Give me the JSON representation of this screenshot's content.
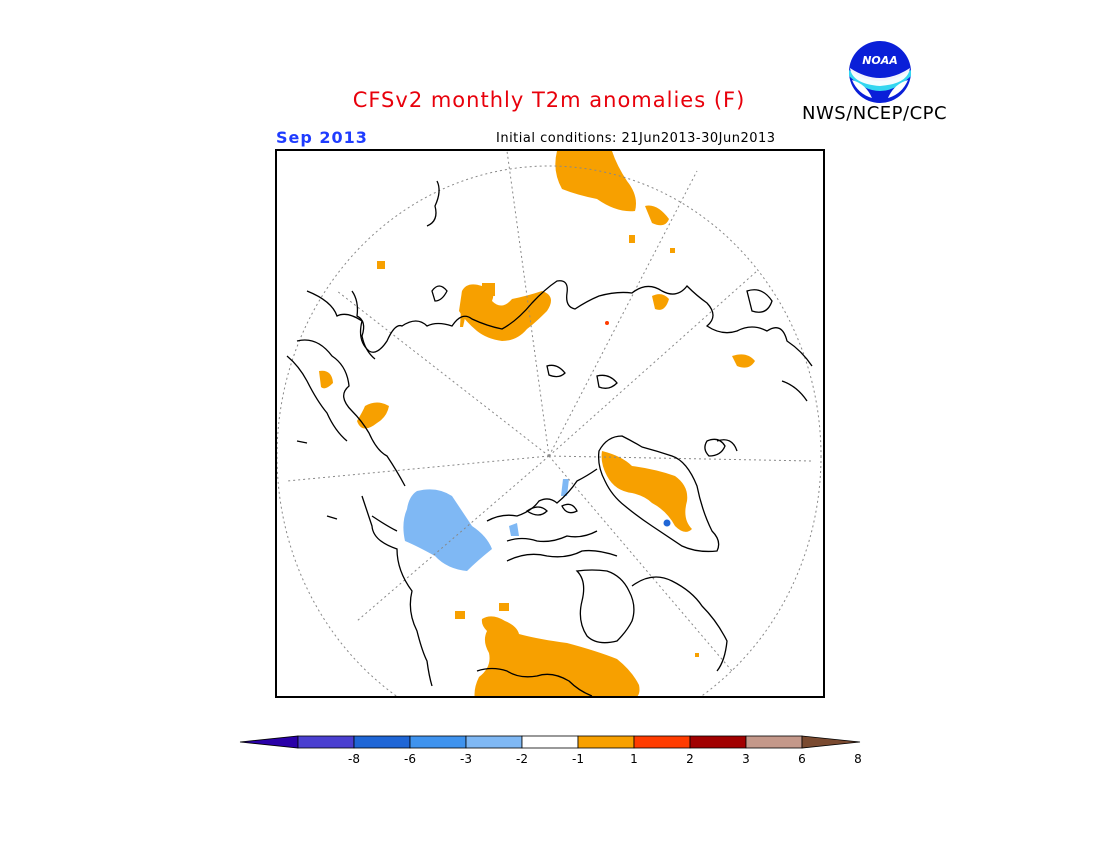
{
  "header": {
    "title": "CFSv2 monthly T2m anomalies (F)",
    "month": "Sep 2013",
    "initial_conditions": "Initial conditions: 21Jun2013-30Jun2013",
    "agency": "NWS/NCEP/CPC",
    "logo_text": "NOAA"
  },
  "colorbar": {
    "tick_labels": [
      "-8",
      "-6",
      "-3",
      "-2",
      "-1",
      "1",
      "2",
      "3",
      "6",
      "8"
    ],
    "colors": [
      "#2a00a8",
      "#4a3fd0",
      "#1f66d6",
      "#3f93ee",
      "#7fb8f4",
      "#ffffff",
      "#f7a000",
      "#ff3c00",
      "#a10000",
      "#c4988a",
      "#7a4a30"
    ]
  },
  "map": {
    "projection": "north polar stereographic",
    "colors": {
      "warm_anomaly": "#f7a000",
      "cool_anomaly": "#7fb8f4",
      "coast": "#000000",
      "grid": "#888888"
    }
  }
}
